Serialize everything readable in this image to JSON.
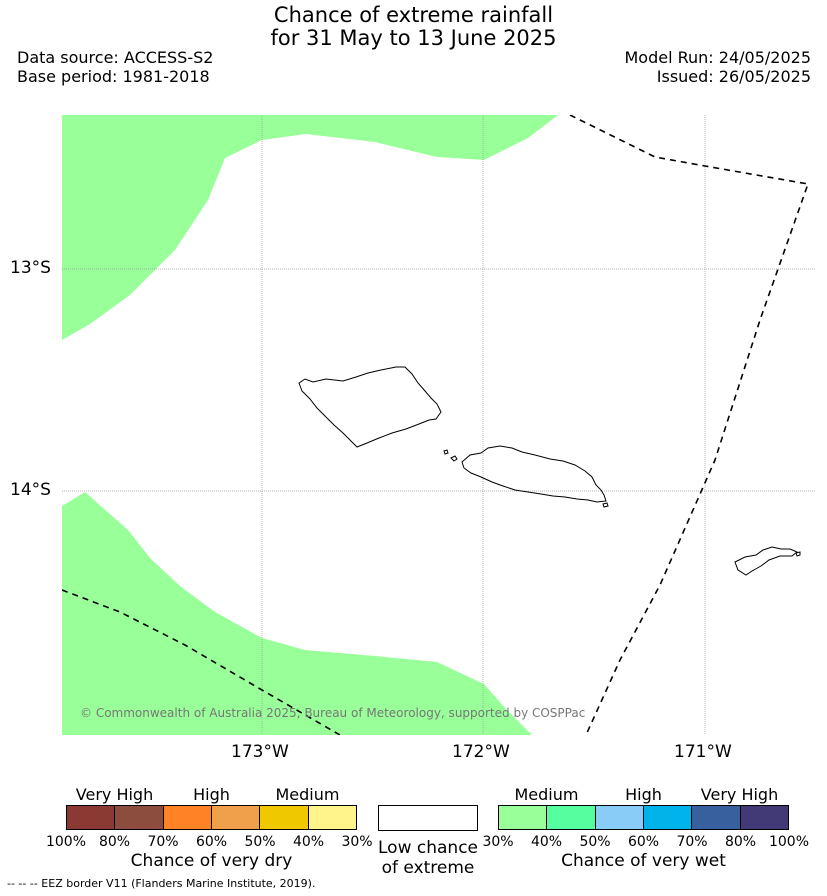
{
  "header": {
    "title_line1": "Chance of extreme rainfall",
    "title_line2": "for 31 May to 13 June 2025",
    "data_source": "Data source: ACCESS-S2",
    "base_period": "Base period: 1981-2018",
    "model_run": "Model Run: 24/05/2025",
    "issued": "Issued: 26/05/2025"
  },
  "map": {
    "latitude_labels": [
      "13°S",
      "14°S"
    ],
    "longitude_labels": [
      "173°W",
      "172°W",
      "171°W"
    ],
    "copyright": "© Commonwealth of Australia 2025, Bureau of Meteorology, supported by COSPPac",
    "colors": {
      "medium_wet_fill": "#99ff99",
      "coastline": "#000000",
      "eez_border": "#000000",
      "gridline": "#999999"
    }
  },
  "legend": {
    "dry": {
      "group_labels": [
        "Very High",
        "High",
        "Medium"
      ],
      "colors": [
        "#8b3a33",
        "#8c4c3e",
        "#ff8225",
        "#f0a04a",
        "#f0c800",
        "#fff48c"
      ],
      "ticks": [
        "100%",
        "80%",
        "70%",
        "60%",
        "50%",
        "40%",
        "30%"
      ],
      "title": "Chance of very dry"
    },
    "neutral": {
      "label_line1": "Low chance",
      "label_line2": "of extreme",
      "color": "#ffffff"
    },
    "wet": {
      "group_labels": [
        "Medium",
        "High",
        "Very High"
      ],
      "colors": [
        "#99ff99",
        "#55ffa0",
        "#88ccf7",
        "#00b4eb",
        "#39609e",
        "#423a77"
      ],
      "ticks": [
        "30%",
        "40%",
        "50%",
        "60%",
        "70%",
        "80%",
        "100%"
      ],
      "title": "Chance of very wet"
    }
  },
  "footnote": "--  --  -- EEZ border V11 (Flanders Marine Institute, 2019)."
}
